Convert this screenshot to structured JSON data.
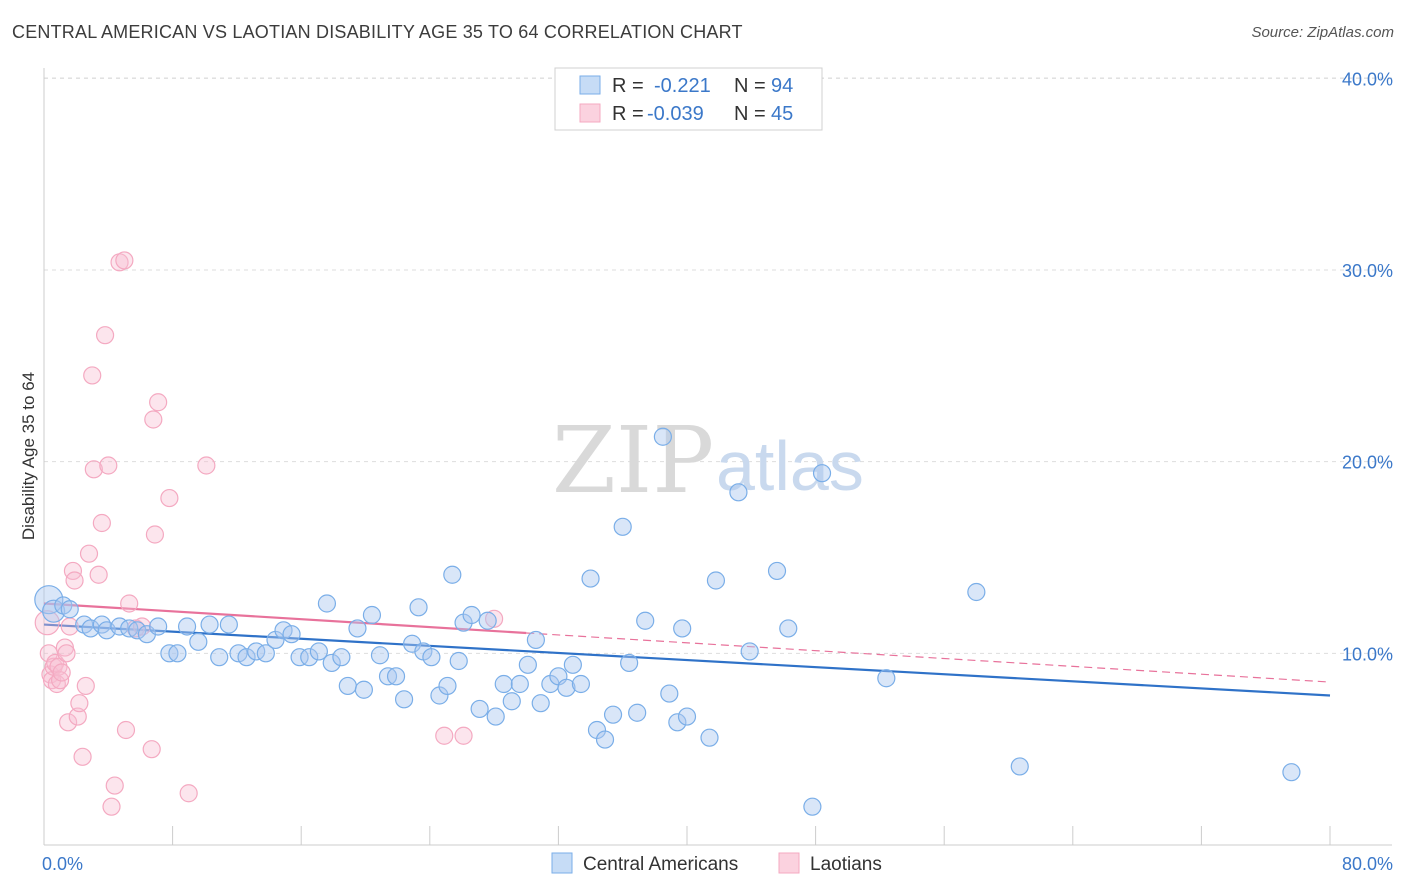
{
  "title": "CENTRAL AMERICAN VS LAOTIAN DISABILITY AGE 35 TO 64 CORRELATION CHART",
  "source": "Source: ZipAtlas.com",
  "watermark": {
    "zip": "ZIP",
    "atlas": "atlas"
  },
  "legend": {
    "rows": [
      {
        "r_label": "R =",
        "r_value": "-0.221",
        "n_label": "N =",
        "n_value": "94"
      },
      {
        "r_label": "R =",
        "r_value": "-0.039",
        "n_label": "N =",
        "n_value": "45"
      }
    ]
  },
  "chart_data": {
    "type": "scatter",
    "title": "CENTRAL AMERICAN VS LAOTIAN DISABILITY AGE 35 TO 64 CORRELATION CHART",
    "xlabel": "",
    "ylabel": "Disability Age 35 to 64",
    "xlim": [
      0,
      80
    ],
    "ylim": [
      0,
      42
    ],
    "x_tick_labels": [
      "0.0%",
      "80.0%"
    ],
    "y_ticks": [
      10,
      20,
      30,
      40
    ],
    "y_tick_labels": [
      "10.0%",
      "20.0%",
      "30.0%",
      "40.0%"
    ],
    "legend_position": "top-center",
    "series": [
      {
        "name": "Central Americans",
        "color": "#7aaee8",
        "line_color": "#2f72c8",
        "r": -0.221,
        "n": 94,
        "trend": {
          "x": [
            0,
            80
          ],
          "y": [
            11.5,
            7.8
          ]
        },
        "points": [
          [
            0.3,
            12.8
          ],
          [
            0.6,
            12.2
          ],
          [
            1.2,
            12.5
          ],
          [
            1.6,
            12.3
          ],
          [
            2.5,
            11.5
          ],
          [
            2.9,
            11.3
          ],
          [
            3.6,
            11.5
          ],
          [
            3.9,
            11.2
          ],
          [
            4.7,
            11.4
          ],
          [
            5.3,
            11.3
          ],
          [
            5.8,
            11.2
          ],
          [
            6.4,
            11.0
          ],
          [
            7.1,
            11.4
          ],
          [
            7.8,
            10.0
          ],
          [
            8.3,
            10.0
          ],
          [
            8.9,
            11.4
          ],
          [
            9.6,
            10.6
          ],
          [
            10.3,
            11.5
          ],
          [
            10.9,
            9.8
          ],
          [
            11.5,
            11.5
          ],
          [
            12.1,
            10.0
          ],
          [
            12.6,
            9.8
          ],
          [
            13.2,
            10.1
          ],
          [
            13.8,
            10.0
          ],
          [
            14.4,
            10.7
          ],
          [
            14.9,
            11.2
          ],
          [
            15.4,
            11.0
          ],
          [
            15.9,
            9.8
          ],
          [
            16.5,
            9.8
          ],
          [
            17.1,
            10.1
          ],
          [
            17.6,
            12.6
          ],
          [
            17.9,
            9.5
          ],
          [
            18.5,
            9.8
          ],
          [
            18.9,
            8.3
          ],
          [
            19.5,
            11.3
          ],
          [
            19.9,
            8.1
          ],
          [
            20.4,
            12.0
          ],
          [
            20.9,
            9.9
          ],
          [
            21.4,
            8.8
          ],
          [
            21.9,
            8.8
          ],
          [
            22.4,
            7.6
          ],
          [
            22.9,
            10.5
          ],
          [
            23.3,
            12.4
          ],
          [
            23.6,
            10.1
          ],
          [
            24.1,
            9.8
          ],
          [
            24.6,
            7.8
          ],
          [
            25.1,
            8.3
          ],
          [
            25.4,
            14.1
          ],
          [
            25.8,
            9.6
          ],
          [
            26.1,
            11.6
          ],
          [
            26.6,
            12.0
          ],
          [
            27.1,
            7.1
          ],
          [
            27.6,
            11.7
          ],
          [
            28.1,
            6.7
          ],
          [
            28.6,
            8.4
          ],
          [
            29.1,
            7.5
          ],
          [
            29.6,
            8.4
          ],
          [
            30.1,
            9.4
          ],
          [
            30.6,
            10.7
          ],
          [
            30.9,
            7.4
          ],
          [
            31.5,
            8.4
          ],
          [
            32.0,
            8.8
          ],
          [
            32.5,
            8.2
          ],
          [
            32.9,
            9.4
          ],
          [
            33.4,
            8.4
          ],
          [
            34.0,
            13.9
          ],
          [
            34.4,
            6.0
          ],
          [
            34.9,
            5.5
          ],
          [
            35.4,
            6.8
          ],
          [
            36.0,
            16.6
          ],
          [
            36.4,
            9.5
          ],
          [
            36.9,
            6.9
          ],
          [
            37.4,
            11.7
          ],
          [
            38.5,
            21.3
          ],
          [
            38.9,
            7.9
          ],
          [
            39.4,
            6.4
          ],
          [
            39.7,
            11.3
          ],
          [
            40.0,
            6.7
          ],
          [
            41.4,
            5.6
          ],
          [
            41.8,
            13.8
          ],
          [
            43.2,
            18.4
          ],
          [
            43.9,
            10.1
          ],
          [
            45.6,
            14.3
          ],
          [
            46.3,
            11.3
          ],
          [
            47.8,
            2.0
          ],
          [
            48.4,
            19.4
          ],
          [
            52.4,
            8.7
          ],
          [
            58.0,
            13.2
          ],
          [
            60.7,
            4.1
          ],
          [
            77.6,
            3.8
          ]
        ]
      },
      {
        "name": "Laotians",
        "color": "#f4a9c1",
        "line_color": "#e8729b",
        "r": -0.039,
        "n": 45,
        "trend": {
          "x": [
            0,
            80
          ],
          "y": [
            12.6,
            8.5
          ]
        },
        "points": [
          [
            0.2,
            11.6
          ],
          [
            0.3,
            10.0
          ],
          [
            0.4,
            8.9
          ],
          [
            0.5,
            8.6
          ],
          [
            0.6,
            9.3
          ],
          [
            0.7,
            9.5
          ],
          [
            0.8,
            8.4
          ],
          [
            0.9,
            9.3
          ],
          [
            1.0,
            8.6
          ],
          [
            1.1,
            9.0
          ],
          [
            1.3,
            10.3
          ],
          [
            1.4,
            10.0
          ],
          [
            1.5,
            6.4
          ],
          [
            1.6,
            11.4
          ],
          [
            1.8,
            14.3
          ],
          [
            1.9,
            13.8
          ],
          [
            2.1,
            6.7
          ],
          [
            2.2,
            7.4
          ],
          [
            2.4,
            4.6
          ],
          [
            2.6,
            8.3
          ],
          [
            2.8,
            15.2
          ],
          [
            3.0,
            24.5
          ],
          [
            3.1,
            19.6
          ],
          [
            3.4,
            14.1
          ],
          [
            3.6,
            16.8
          ],
          [
            3.8,
            26.6
          ],
          [
            4.0,
            19.8
          ],
          [
            4.2,
            2.0
          ],
          [
            4.4,
            3.1
          ],
          [
            4.7,
            30.4
          ],
          [
            5.0,
            30.5
          ],
          [
            5.1,
            6.0
          ],
          [
            5.3,
            12.6
          ],
          [
            5.7,
            11.3
          ],
          [
            6.1,
            11.4
          ],
          [
            6.7,
            5.0
          ],
          [
            6.8,
            22.2
          ],
          [
            6.9,
            16.2
          ],
          [
            7.1,
            23.1
          ],
          [
            7.8,
            18.1
          ],
          [
            9.0,
            2.7
          ],
          [
            10.1,
            19.8
          ],
          [
            24.9,
            5.7
          ],
          [
            26.1,
            5.7
          ],
          [
            28.0,
            11.8
          ]
        ]
      }
    ]
  }
}
